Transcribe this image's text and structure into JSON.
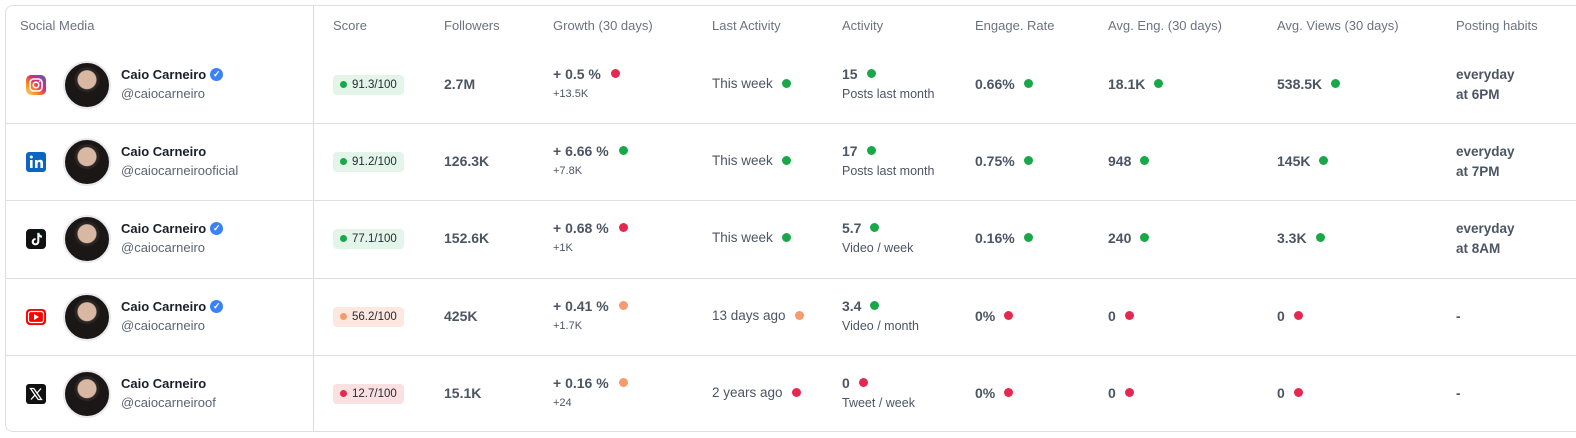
{
  "headers": {
    "social_media": "Social Media",
    "score": "Score",
    "followers": "Followers",
    "growth": "Growth (30 days)",
    "last_activity": "Last Activity",
    "activity": "Activity",
    "engage_rate": "Engage. Rate",
    "avg_eng": "Avg. Eng. (30 days)",
    "avg_views": "Avg. Views (30 days)",
    "posting_habits": "Posting habits"
  },
  "colors": {
    "good": "#18a84a",
    "bad": "#e5284f",
    "warn": "#f59b6c",
    "verified": "#3b82f6"
  },
  "rows": [
    {
      "platform_icon": "instagram-icon",
      "name": "Caio Carneiro",
      "verified": true,
      "handle": "@caiocarneiro",
      "score": "91.3/100",
      "score_status": "green",
      "followers": "2.7M",
      "growth_pct": "+ 0.5 %",
      "growth_status": "red",
      "growth_abs": "+13.5K",
      "last_activity": "This week",
      "last_status": "green",
      "activity_value": "15",
      "activity_status": "green",
      "activity_unit": "Posts last month",
      "engage_rate": "0.66%",
      "engage_status": "green",
      "avg_eng": "18.1K",
      "avg_eng_status": "green",
      "avg_views": "538.5K",
      "avg_views_status": "green",
      "habit_line1": "everyday",
      "habit_line2": "at 6PM"
    },
    {
      "platform_icon": "linkedin-icon",
      "name": "Caio Carneiro",
      "verified": false,
      "handle": "@caiocarneirooficial",
      "score": "91.2/100",
      "score_status": "green",
      "followers": "126.3K",
      "growth_pct": "+ 6.66 %",
      "growth_status": "green",
      "growth_abs": "+7.8K",
      "last_activity": "This week",
      "last_status": "green",
      "activity_value": "17",
      "activity_status": "green",
      "activity_unit": "Posts last month",
      "engage_rate": "0.75%",
      "engage_status": "green",
      "avg_eng": "948",
      "avg_eng_status": "green",
      "avg_views": "145K",
      "avg_views_status": "green",
      "habit_line1": "everyday",
      "habit_line2": "at 7PM"
    },
    {
      "platform_icon": "tiktok-icon",
      "name": "Caio Carneiro",
      "verified": true,
      "handle": "@caiocarneiro",
      "score": "77.1/100",
      "score_status": "green",
      "followers": "152.6K",
      "growth_pct": "+ 0.68 %",
      "growth_status": "red",
      "growth_abs": "+1K",
      "last_activity": "This week",
      "last_status": "green",
      "activity_value": "5.7",
      "activity_status": "green",
      "activity_unit": "Video / week",
      "engage_rate": "0.16%",
      "engage_status": "green",
      "avg_eng": "240",
      "avg_eng_status": "green",
      "avg_views": "3.3K",
      "avg_views_status": "green",
      "habit_line1": "everyday",
      "habit_line2": "at 8AM"
    },
    {
      "platform_icon": "youtube-icon",
      "name": "Caio Carneiro",
      "verified": true,
      "handle": "@caiocarneiro",
      "score": "56.2/100",
      "score_status": "orange",
      "followers": "425K",
      "growth_pct": "+ 0.41 %",
      "growth_status": "orange",
      "growth_abs": "+1.7K",
      "last_activity": "13 days ago",
      "last_status": "orange",
      "activity_value": "3.4",
      "activity_status": "green",
      "activity_unit": "Video / month",
      "engage_rate": "0%",
      "engage_status": "red",
      "avg_eng": "0",
      "avg_eng_status": "red",
      "avg_views": "0",
      "avg_views_status": "red",
      "habit_line1": "-",
      "habit_line2": ""
    },
    {
      "platform_icon": "x-icon",
      "name": "Caio Carneiro",
      "verified": false,
      "handle": "@caiocarneiroof",
      "score": "12.7/100",
      "score_status": "red",
      "followers": "15.1K",
      "growth_pct": "+ 0.16 %",
      "growth_status": "orange",
      "growth_abs": "+24",
      "last_activity": "2 years ago",
      "last_status": "red",
      "activity_value": "0",
      "activity_status": "red",
      "activity_unit": "Tweet / week",
      "engage_rate": "0%",
      "engage_status": "red",
      "avg_eng": "0",
      "avg_eng_status": "red",
      "avg_views": "0",
      "avg_views_status": "red",
      "habit_line1": "-",
      "habit_line2": ""
    }
  ]
}
